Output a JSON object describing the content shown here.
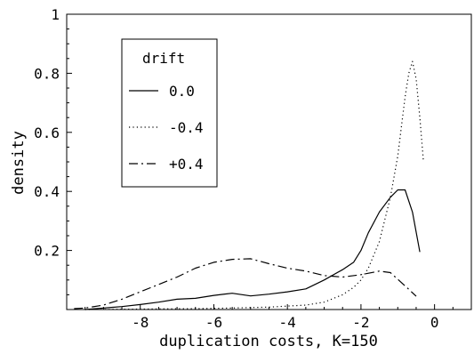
{
  "chart_data": {
    "type": "line",
    "xlabel": "duplication costs, K=150",
    "ylabel": "density",
    "xlim": [
      -10,
      1
    ],
    "ylim": [
      0,
      1
    ],
    "x_ticks": [
      -8,
      -6,
      -4,
      -2,
      0
    ],
    "y_ticks": [
      0.2,
      0.4,
      0.6,
      0.8,
      1
    ],
    "y_tick_labels": [
      "0.2",
      "0.4",
      "0.6",
      "0.8",
      "1"
    ],
    "x_tick_labels": [
      "-8",
      "-6",
      "-4",
      "-2",
      "0"
    ],
    "grid": false,
    "legend": {
      "title": "drift",
      "position": "top-left"
    },
    "series": [
      {
        "name": "0.0",
        "style": "solid",
        "color": "#000000",
        "x": [
          -9.5,
          -9.0,
          -8.5,
          -8.0,
          -7.5,
          -7.0,
          -6.5,
          -6.0,
          -5.5,
          -5.0,
          -4.5,
          -4.0,
          -3.5,
          -3.0,
          -2.5,
          -2.2,
          -2.0,
          -1.8,
          -1.5,
          -1.2,
          -1.0,
          -0.8,
          -0.6,
          -0.4
        ],
        "y": [
          0.0,
          0.005,
          0.01,
          0.017,
          0.025,
          0.035,
          0.038,
          0.048,
          0.055,
          0.046,
          0.052,
          0.06,
          0.07,
          0.1,
          0.135,
          0.16,
          0.2,
          0.26,
          0.33,
          0.38,
          0.405,
          0.405,
          0.33,
          0.195
        ]
      },
      {
        "name": "-0.4",
        "style": "dotted",
        "color": "#000000",
        "x": [
          -9.5,
          -8.5,
          -7.5,
          -6.5,
          -5.5,
          -4.5,
          -3.5,
          -3.0,
          -2.5,
          -2.2,
          -2.0,
          -1.8,
          -1.5,
          -1.2,
          -1.0,
          -0.8,
          -0.7,
          -0.6,
          -0.5,
          -0.4,
          -0.3
        ],
        "y": [
          0.0,
          0.001,
          0.002,
          0.003,
          0.005,
          0.008,
          0.015,
          0.025,
          0.05,
          0.075,
          0.1,
          0.14,
          0.23,
          0.38,
          0.52,
          0.72,
          0.8,
          0.84,
          0.78,
          0.65,
          0.5
        ]
      },
      {
        "name": "+0.4",
        "style": "dashdot",
        "color": "#000000",
        "x": [
          -9.8,
          -9.5,
          -9.0,
          -8.5,
          -8.0,
          -7.5,
          -7.0,
          -6.5,
          -6.0,
          -5.5,
          -5.0,
          -4.5,
          -4.0,
          -3.5,
          -3.0,
          -2.5,
          -2.0,
          -1.5,
          -1.2,
          -0.8,
          -0.5
        ],
        "y": [
          0.003,
          0.005,
          0.015,
          0.035,
          0.06,
          0.085,
          0.11,
          0.14,
          0.16,
          0.17,
          0.172,
          0.155,
          0.14,
          0.13,
          0.115,
          0.11,
          0.118,
          0.13,
          0.125,
          0.08,
          0.045
        ]
      }
    ]
  }
}
